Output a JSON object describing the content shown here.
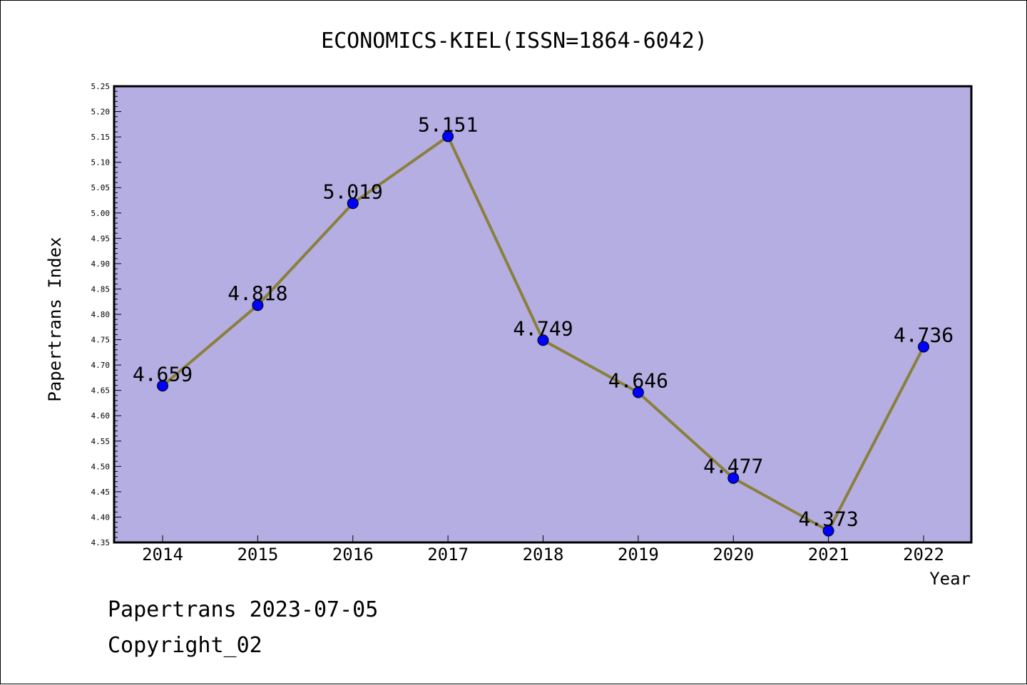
{
  "chart_data": {
    "type": "line",
    "title": "ECONOMICS-KIEL(ISSN=1864-6042)",
    "xlabel": "Year",
    "ylabel": "Papertrans Index",
    "categories": [
      "2014",
      "2015",
      "2016",
      "2017",
      "2018",
      "2019",
      "2020",
      "2021",
      "2022"
    ],
    "values": [
      4.659,
      4.818,
      5.019,
      5.151,
      4.749,
      4.646,
      4.477,
      4.373,
      4.736
    ],
    "data_labels": [
      "4.659",
      "4.818",
      "5.019",
      "5.151",
      "4.749",
      "4.646",
      "4.477",
      "4.373",
      "4.736"
    ],
    "ylim": [
      4.35,
      5.25
    ],
    "y_ticks": [
      "4.35",
      "4.40",
      "4.45",
      "4.50",
      "4.55",
      "4.60",
      "4.65",
      "4.70",
      "4.75",
      "4.80",
      "4.85",
      "4.90",
      "4.95",
      "5.00",
      "5.05",
      "5.10",
      "5.15",
      "5.20",
      "5.25"
    ],
    "grid": false,
    "legend": "none",
    "colors": {
      "plot_background": "#b4aee2",
      "line": "#8b7f3c",
      "marker": "#0000ff"
    }
  },
  "footer": {
    "line1": "Papertrans 2023-07-05",
    "line2": "Copyright_02"
  }
}
